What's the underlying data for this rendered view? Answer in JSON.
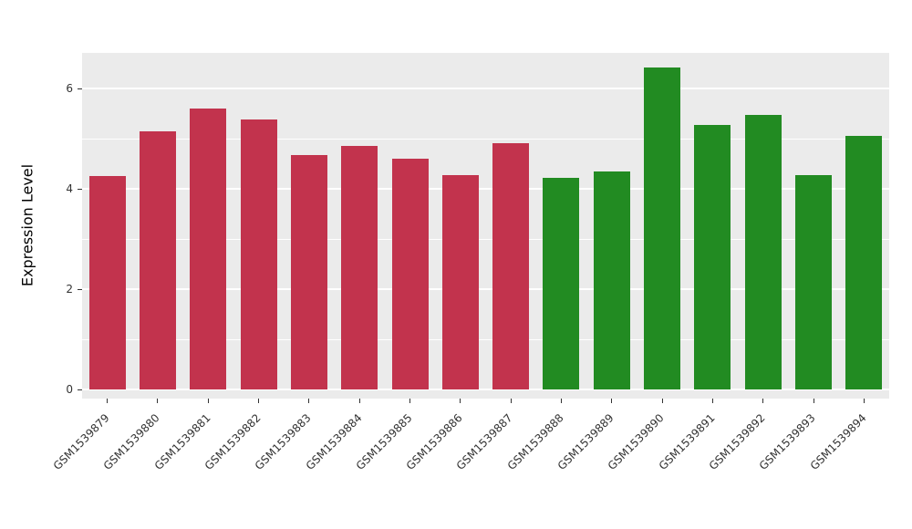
{
  "figure": {
    "background_color": "#ffffff",
    "panel_background_color": "#ebebeb",
    "grid_color": "#ffffff",
    "axis_text_color": "#333333"
  },
  "chart_data": {
    "type": "bar",
    "title": "",
    "xlabel": "",
    "ylabel": "Expression Level",
    "ylim": [
      0,
      6.7
    ],
    "yticks_major": [
      0,
      2,
      4,
      6
    ],
    "yticks_minor": [
      1,
      3,
      5
    ],
    "grid": true,
    "legend_position": "none",
    "categories": [
      "GSM1539879",
      "GSM1539880",
      "GSM1539881",
      "GSM1539882",
      "GSM1539883",
      "GSM1539884",
      "GSM1539885",
      "GSM1539886",
      "GSM1539887",
      "GSM1539888",
      "GSM1539889",
      "GSM1539890",
      "GSM1539891",
      "GSM1539892",
      "GSM1539893",
      "GSM1539894"
    ],
    "values": [
      4.25,
      5.15,
      5.6,
      5.38,
      4.68,
      4.85,
      4.6,
      4.28,
      4.9,
      4.22,
      4.35,
      6.42,
      5.27,
      5.48,
      4.27,
      5.05
    ],
    "bar_colors": [
      "#c2334d",
      "#c2334d",
      "#c2334d",
      "#c2334d",
      "#c2334d",
      "#c2334d",
      "#c2334d",
      "#c2334d",
      "#c2334d",
      "#228b22",
      "#228b22",
      "#228b22",
      "#228b22",
      "#228b22",
      "#228b22",
      "#228b22"
    ],
    "group_colors": {
      "group1": "#c2334d",
      "group2": "#228b22"
    }
  }
}
